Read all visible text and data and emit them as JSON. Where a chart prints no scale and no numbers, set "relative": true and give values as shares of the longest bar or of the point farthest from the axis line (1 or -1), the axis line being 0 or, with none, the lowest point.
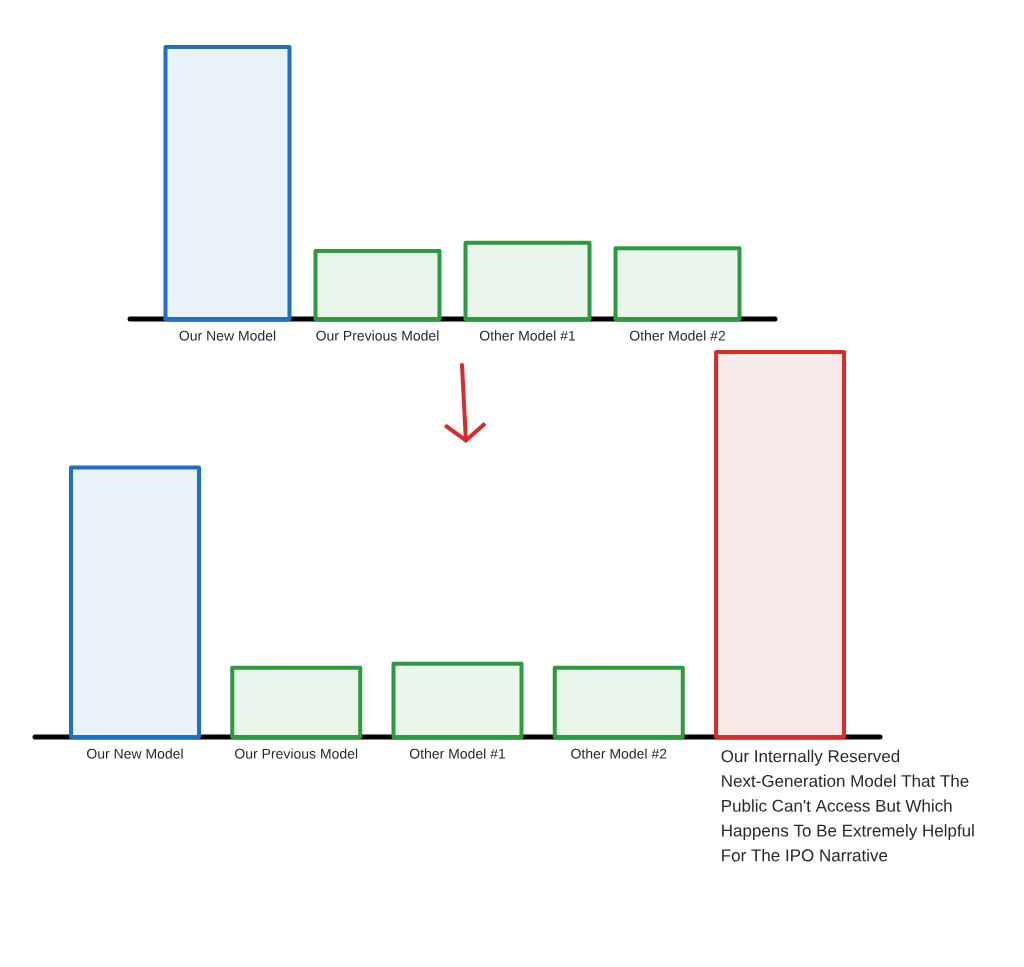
{
  "chart_data": [
    {
      "type": "bar",
      "relative": true,
      "categories": [
        "Our New Model",
        "Our Previous Model",
        "Other Model #1",
        "Other Model #2"
      ],
      "values": [
        1,
        0.25,
        0.28,
        0.26
      ],
      "colors": [
        "#1f6fc4",
        "#2e9a3e",
        "#2e9a3e",
        "#2e9a3e"
      ]
    },
    {
      "type": "bar",
      "relative": true,
      "categories": [
        "Our New Model",
        "Our Previous Model",
        "Other Model #1",
        "Other Model #2",
        "Our Internally Reserved Next-Generation Model That The Public Can't Access But Which Happens To Be Extremely Helpful For The IPO Narrative"
      ],
      "values": [
        0.7,
        0.18,
        0.19,
        0.18,
        1
      ],
      "colors": [
        "#1f6fc4",
        "#2e9a3e",
        "#2e9a3e",
        "#2e9a3e",
        "#da2b2b"
      ]
    }
  ]
}
